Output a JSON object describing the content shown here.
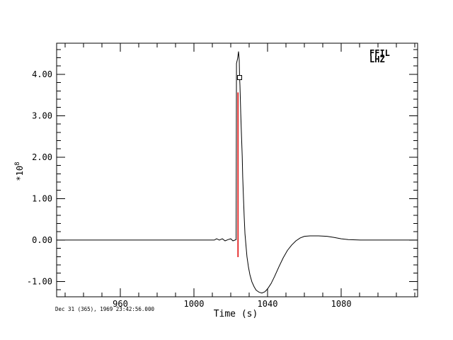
{
  "window": {
    "background": "#ffffff",
    "foreground": "#000000"
  },
  "chart_data": {
    "type": "line",
    "title": "",
    "xlabel": "Time (s)",
    "ylabel_base": "*10",
    "ylabel_exponent": "8",
    "xlim": [
      925.4,
      1121.5
    ],
    "ylim": [
      -1.37,
      4.75
    ],
    "grid": false,
    "x_major_ticks": [
      960,
      1000,
      1040,
      1080
    ],
    "x_tick_labels": [
      "960",
      "1000",
      "1040",
      "1080"
    ],
    "x_minor_step": 10,
    "y_major_ticks": [
      -1,
      0,
      1,
      2,
      3,
      4
    ],
    "y_tick_labels": [
      "-1.00",
      "0.00",
      "1.00",
      "2.00",
      "3.00",
      "4.00"
    ],
    "y_minor_step": 0.2,
    "legend": {
      "position": "top-right",
      "lines": [
        "FFIL",
        "LHZ"
      ]
    },
    "timestamp": "Dec 31 (365), 1969 23:42:56.000",
    "series": [
      {
        "name": "FFIL LHZ waveform",
        "color": "#000000",
        "points": [
          [
            925.4,
            0.0
          ],
          [
            971.5,
            0.0
          ],
          [
            1011.1,
            0.0
          ],
          [
            1012.3,
            0.03
          ],
          [
            1013.8,
            0.0
          ],
          [
            1015.4,
            0.03
          ],
          [
            1016.9,
            -0.02
          ],
          [
            1018.5,
            0.01
          ],
          [
            1020.0,
            0.03
          ],
          [
            1021.2,
            -0.02
          ],
          [
            1022.3,
            0.0
          ],
          [
            1022.9,
            0.01
          ],
          [
            1023.1,
            4.26
          ],
          [
            1023.7,
            4.38
          ],
          [
            1024.2,
            4.55
          ],
          [
            1024.6,
            4.34
          ],
          [
            1024.8,
            3.92
          ],
          [
            1025.0,
            3.74
          ],
          [
            1025.4,
            3.06
          ],
          [
            1025.8,
            2.56
          ],
          [
            1026.2,
            2.03
          ],
          [
            1026.5,
            1.52
          ],
          [
            1026.9,
            1.01
          ],
          [
            1027.3,
            0.56
          ],
          [
            1027.7,
            0.15
          ],
          [
            1028.3,
            -0.15
          ],
          [
            1028.8,
            -0.4
          ],
          [
            1029.6,
            -0.65
          ],
          [
            1030.4,
            -0.84
          ],
          [
            1031.5,
            -1.01
          ],
          [
            1032.7,
            -1.13
          ],
          [
            1033.8,
            -1.21
          ],
          [
            1035.4,
            -1.26
          ],
          [
            1036.9,
            -1.28
          ],
          [
            1038.5,
            -1.25
          ],
          [
            1040.0,
            -1.18
          ],
          [
            1041.9,
            -1.05
          ],
          [
            1043.8,
            -0.88
          ],
          [
            1046.2,
            -0.64
          ],
          [
            1048.5,
            -0.43
          ],
          [
            1050.8,
            -0.25
          ],
          [
            1053.1,
            -0.12
          ],
          [
            1055.4,
            -0.02
          ],
          [
            1057.7,
            0.05
          ],
          [
            1060.0,
            0.09
          ],
          [
            1063.1,
            0.1
          ],
          [
            1067.7,
            0.1
          ],
          [
            1072.3,
            0.09
          ],
          [
            1076.2,
            0.06
          ],
          [
            1080.0,
            0.03
          ],
          [
            1083.8,
            0.01
          ],
          [
            1090.8,
            0.0
          ],
          [
            1121.5,
            0.0
          ]
        ]
      }
    ],
    "pick_line": {
      "t": 1024.0,
      "v_top": 3.56,
      "v_bottom": -0.41,
      "color": "#e00000"
    },
    "point_marker": {
      "t": 1024.8,
      "v": 3.92,
      "shape": "open-square",
      "color": "#000000"
    }
  }
}
